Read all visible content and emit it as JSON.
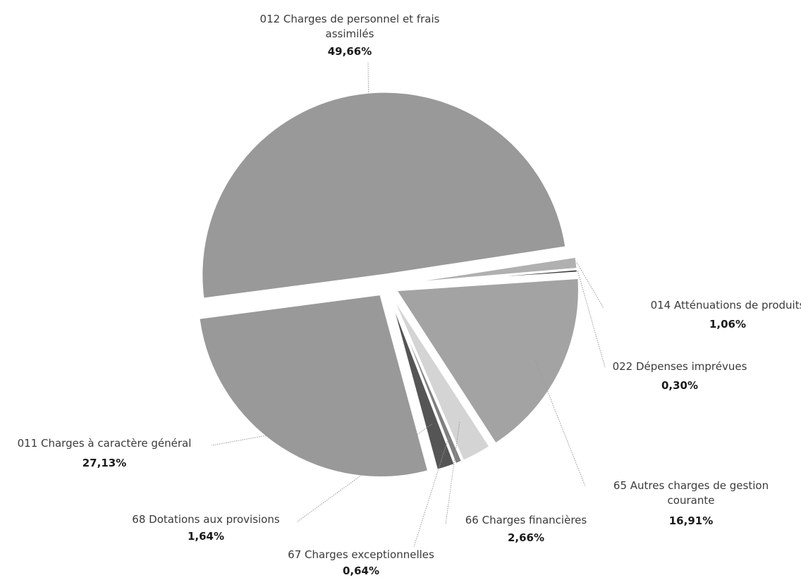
{
  "chart_data": {
    "type": "pie",
    "slices": [
      {
        "label_lines": [
          "012 Charges de personnel et frais",
          "assimilés"
        ],
        "value": 49.66,
        "display": "49,66%",
        "color": "#999999"
      },
      {
        "label_lines": [
          "014 Atténuations de produits"
        ],
        "value": 1.06,
        "display": "1,06%",
        "color": "#b0b0b0"
      },
      {
        "label_lines": [
          "022 Dépenses imprévues"
        ],
        "value": 0.3,
        "display": "0,30%",
        "color": "#3c3c3c"
      },
      {
        "label_lines": [
          "65 Autres charges de gestion",
          "courante"
        ],
        "value": 16.91,
        "display": "16,91%",
        "color": "#a3a3a3"
      },
      {
        "label_lines": [
          "66 Charges financières"
        ],
        "value": 2.66,
        "display": "2,66%",
        "color": "#d4d4d4"
      },
      {
        "label_lines": [
          "67 Charges exceptionnelles"
        ],
        "value": 0.64,
        "display": "0,64%",
        "color": "#808080"
      },
      {
        "label_lines": [
          "68 Dotations aux provisions"
        ],
        "value": 1.64,
        "display": "1,64%",
        "color": "#555555"
      },
      {
        "label_lines": [
          "011 Charges à caractère général"
        ],
        "value": 27.13,
        "display": "27,13%",
        "color": "#999999"
      }
    ]
  }
}
